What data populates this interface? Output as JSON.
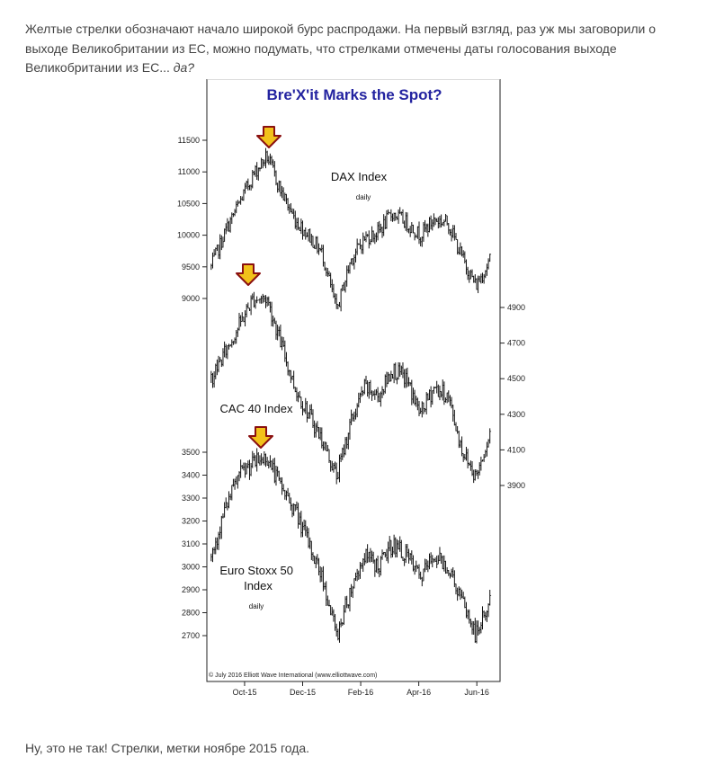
{
  "article": {
    "intro_before": "Желтые стрелки обозначают начало широкой бурс распродажи. На первый взгляд, раз уж мы заговорили о выходе Великобритании из ЕС, можно подумать, что стрелками отмечены даты голосования выходе Великобритании из ЕС... ",
    "intro_emphasis": "да?",
    "outro": "Ну, это не так! Стрелки, метки ноябре 2015 года."
  },
  "colors": {
    "title": "#2323a0",
    "arrow_fill": "#f2c21a",
    "arrow_stroke": "#8a1010",
    "price": "#111111",
    "text": "#444444"
  },
  "icons": {
    "marker": "down-arrow-icon"
  },
  "chart_data": [
    {
      "type": "bar",
      "label": "DAX Index",
      "sublabel": "daily",
      "frequency": "daily",
      "title": "Bre'X'it Marks the Spot?",
      "copyright": "© July 2016 Elliott Wave International (www.elliottwave.com)",
      "x_ticks": [
        "Oct-15",
        "Dec-15",
        "Feb-16",
        "Apr-16",
        "Jun-16"
      ],
      "y_ticks": [
        9000,
        9500,
        10000,
        10500,
        11000,
        11500
      ],
      "y_axis_side": "left",
      "ylim": [
        8800,
        11750
      ],
      "marker_at": "Nov-15",
      "series": [
        {
          "x": [
            "Sep-15",
            "Oct-15",
            "Oct-15",
            "Nov-15",
            "Nov-15",
            "Dec-15",
            "Dec-15",
            "Jan-16",
            "Jan-16",
            "Feb-16",
            "Feb-16",
            "Mar-16",
            "Mar-16",
            "Apr-16",
            "Apr-16",
            "May-16",
            "May-16",
            "Jun-16",
            "Jun-16",
            "Jun-16",
            "Jul-16"
          ],
          "values": [
            9500,
            10050,
            10500,
            10950,
            11250,
            10700,
            10250,
            10000,
            9700,
            8800,
            9600,
            9950,
            10050,
            10350,
            10200,
            10000,
            10250,
            10200,
            9650,
            9200,
            9600
          ]
        }
      ]
    },
    {
      "type": "bar",
      "label": "CAC 40 Index",
      "sublabel": "",
      "frequency": "daily",
      "x_ticks": [
        "Oct-15",
        "Dec-15",
        "Feb-16",
        "Apr-16",
        "Jun-16"
      ],
      "y_ticks": [
        3900,
        4100,
        4300,
        4500,
        4700,
        4900
      ],
      "y_axis_side": "right",
      "ylim": [
        3700,
        5010
      ],
      "marker_at": "Nov-15",
      "series": [
        {
          "x": [
            "Sep-15",
            "Oct-15",
            "Oct-15",
            "Nov-15",
            "Nov-15",
            "Dec-15",
            "Dec-15",
            "Jan-16",
            "Jan-16",
            "Feb-16",
            "Feb-16",
            "Mar-16",
            "Mar-16",
            "Apr-16",
            "Apr-16",
            "May-16",
            "May-16",
            "Jun-16",
            "Jun-16",
            "Jun-16",
            "Jul-16"
          ],
          "values": [
            4500,
            4650,
            4800,
            4950,
            4950,
            4700,
            4450,
            4300,
            4150,
            3950,
            4250,
            4450,
            4400,
            4550,
            4500,
            4300,
            4450,
            4400,
            4100,
            3950,
            4200
          ]
        }
      ]
    },
    {
      "type": "bar",
      "label": "Euro Stoxx 50\nIndex",
      "sublabel": "daily",
      "frequency": "daily",
      "x_ticks": [
        "Oct-15",
        "Dec-15",
        "Feb-16",
        "Apr-16",
        "Jun-16"
      ],
      "y_ticks": [
        2700,
        2800,
        2900,
        3000,
        3100,
        3200,
        3300,
        3400,
        3500
      ],
      "y_axis_side": "left",
      "ylim": [
        2640,
        3560
      ],
      "marker_at": "Nov-15",
      "series": [
        {
          "x": [
            "Sep-15",
            "Oct-15",
            "Oct-15",
            "Nov-15",
            "Nov-15",
            "Dec-15",
            "Dec-15",
            "Jan-16",
            "Jan-16",
            "Feb-16",
            "Feb-16",
            "Mar-16",
            "Mar-16",
            "Apr-16",
            "Apr-16",
            "May-16",
            "May-16",
            "Jun-16",
            "Jun-16",
            "Jun-16",
            "Jul-16"
          ],
          "values": [
            3050,
            3250,
            3400,
            3450,
            3480,
            3350,
            3250,
            3100,
            2950,
            2700,
            2900,
            3050,
            3000,
            3100,
            3050,
            2950,
            3050,
            3000,
            2850,
            2700,
            2850
          ]
        }
      ]
    }
  ]
}
